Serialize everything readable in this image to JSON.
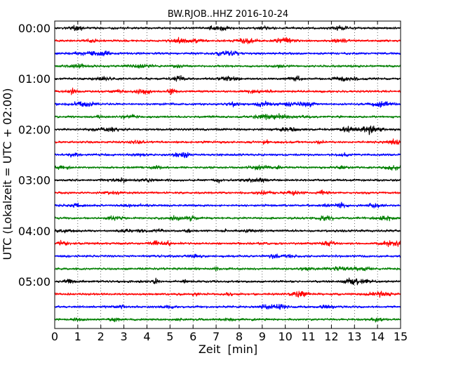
{
  "chart_data": {
    "type": "line",
    "title": "BW.RJOB..HHZ 2016-10-24",
    "xlabel": "Zeit  [min]",
    "ylabel": "UTC (Lokalzeit = UTC + 02:00)",
    "xlim": [
      0,
      15
    ],
    "x_ticks": [
      "0",
      "1",
      "2",
      "3",
      "4",
      "5",
      "6",
      "7",
      "8",
      "9",
      "10",
      "11",
      "12",
      "13",
      "14",
      "15"
    ],
    "x_grid": "dotted vertical lines at each minute",
    "y_ticks": [
      "00:00",
      "01:00",
      "02:00",
      "03:00",
      "04:00",
      "05:00"
    ],
    "traces_per_hour": 4,
    "trace_count": 24,
    "trace_duration_min": 15,
    "series_colors": [
      "#000000",
      "#ff0000",
      "#0000ff",
      "#007f00"
    ]
  }
}
